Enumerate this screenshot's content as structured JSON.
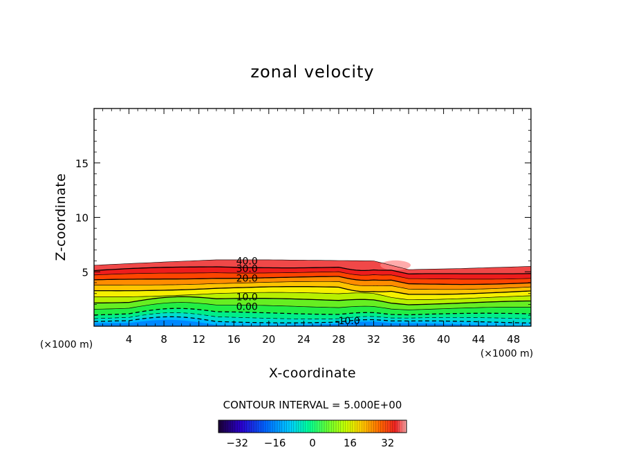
{
  "chart_data": {
    "type": "heatmap",
    "title": "zonal velocity",
    "xlabel": "X-coordinate",
    "ylabel": "Z-coordinate",
    "x_unit_label": "(×1000 m)",
    "x_unit_label_right": "(×1000 m)",
    "xlim": [
      0,
      50
    ],
    "ylim": [
      0,
      20
    ],
    "x_ticks": [
      4,
      8,
      12,
      16,
      20,
      24,
      28,
      32,
      36,
      40,
      44,
      48
    ],
    "x_tick_labels": [
      "4",
      "8",
      "12",
      "16",
      "20",
      "24",
      "28",
      "32",
      "36",
      "40",
      "44",
      "48"
    ],
    "y_ticks": [
      5,
      10,
      15
    ],
    "y_tick_labels": [
      "5",
      "10",
      "15"
    ],
    "contour_interval_text": "CONTOUR INTERVAL = 5.000E+00",
    "contour_interval": 5.0,
    "contour_labels": [
      {
        "text": "40.0",
        "x": 17.5,
        "z": 6.0
      },
      {
        "text": "30.0",
        "x": 17.5,
        "z": 5.3
      },
      {
        "text": "20.0",
        "x": 17.5,
        "z": 4.4
      },
      {
        "text": "10.0",
        "x": 17.5,
        "z": 2.7
      },
      {
        "text": "0.00",
        "x": 17.5,
        "z": 1.8
      },
      {
        "text": "-10.0",
        "x": 29.0,
        "z": 0.5
      }
    ],
    "colorbar": {
      "range": [
        -40,
        40
      ],
      "tick_values": [
        -32,
        -16,
        0,
        16,
        32
      ],
      "tick_labels": [
        "−32",
        "−16",
        "0",
        "16",
        "32"
      ]
    },
    "field_summary": {
      "top_of_jet_height": [
        5.6,
        5.9,
        6.1,
        6.1,
        6.0,
        5.2,
        5.3,
        5.5
      ],
      "top_of_jet_x": [
        0,
        8,
        14,
        20,
        32,
        36,
        42,
        50
      ],
      "max_value_label": "40.0",
      "min_value_label": "-10.0"
    }
  },
  "colors": {
    "background": "#ffffff",
    "frame": "#000000",
    "colormap": [
      "#1a0066",
      "#0000cc",
      "#0066ff",
      "#00ccff",
      "#00ffcc",
      "#33ff33",
      "#99ff33",
      "#ffff00",
      "#ffcc00",
      "#ff8000",
      "#ff3300",
      "#ee2222",
      "#ff9999"
    ]
  }
}
